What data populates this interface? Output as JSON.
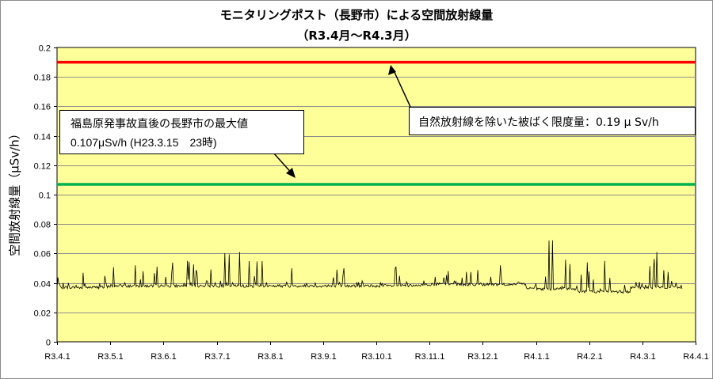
{
  "chart_data": {
    "type": "line",
    "title": "モニタリングポスト（長野市）による空間放射線量",
    "subtitle": "（R3.4月〜R4.3月）",
    "ylabel": "空間放射線量（μSv/h）",
    "xlabel": "",
    "ylim": [
      0,
      0.2
    ],
    "yticks": [
      "0",
      "0.02",
      "0.04",
      "0.06",
      "0.08",
      "0.1",
      "0.12",
      "0.14",
      "0.16",
      "0.18",
      "0.2"
    ],
    "categories": [
      "R3.4.1",
      "R3.5.1",
      "R3.6.1",
      "R3.7.1",
      "R3.8.1",
      "R3.9.1",
      "R3.10.1",
      "R3.11.1",
      "R3.12.1",
      "R4.1.1",
      "R4.2.1",
      "R4.3.1",
      "R4.4.1"
    ],
    "grid": true,
    "background_color": "#ffff99",
    "series": [
      {
        "kind": "reference_line",
        "value": 0.19,
        "color": "#ff0000",
        "annotation": "自然放射線を除いた被ばく限度量：0.19 μ Sv/h"
      },
      {
        "kind": "reference_line",
        "value": 0.107,
        "color": "#00b050",
        "annotation_line1": "福島原発事故直後の長野市の最大値",
        "annotation_line2": "0.107μSv/h (H23.3.15　23時)"
      },
      {
        "kind": "measurement",
        "color": "#000000",
        "monthly_baseline": [
          0.037,
          0.038,
          0.038,
          0.038,
          0.038,
          0.038,
          0.038,
          0.039,
          0.039,
          0.036,
          0.034,
          0.037
        ],
        "monthly_peak": [
          0.047,
          0.052,
          0.055,
          0.061,
          0.05,
          0.05,
          0.051,
          0.048,
          0.052,
          0.069,
          0.055,
          0.061
        ]
      }
    ]
  }
}
